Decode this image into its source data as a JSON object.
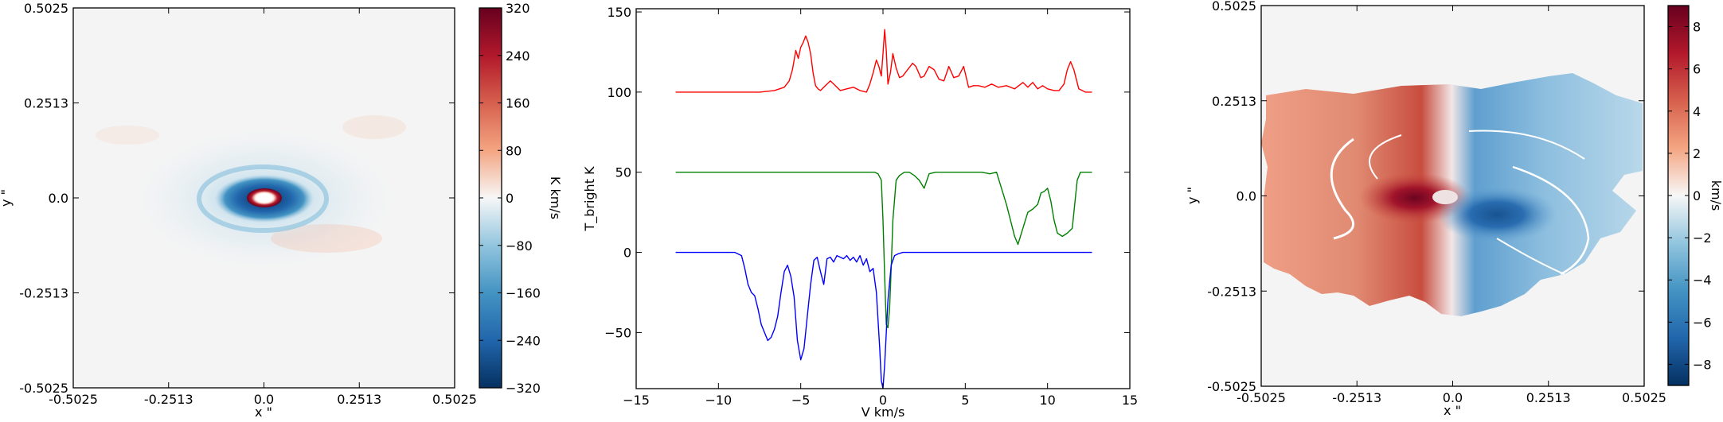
{
  "chart_data": [
    {
      "type": "heatmap",
      "panel": "moment0",
      "xlabel": "x \"",
      "ylabel": "y \"",
      "xlim": [
        -0.5025,
        0.5025
      ],
      "ylim": [
        -0.5025,
        0.5025
      ],
      "x_ticks": [
        "-0.5025",
        "-0.2513",
        "0.0",
        "0.2513",
        "0.5025"
      ],
      "y_ticks": [
        "-0.5025",
        "-0.2513",
        "0.0",
        "0.2513",
        "0.5025"
      ],
      "colorbar": {
        "label": "K km/s",
        "range": [
          -320,
          320
        ],
        "ticks": [
          "320",
          "240",
          "160",
          "80",
          "0",
          "−80",
          "−160",
          "−240",
          "−320"
        ],
        "colormap": "RdBu_r"
      }
    },
    {
      "type": "line",
      "panel": "spectra",
      "xlabel": "V km/s",
      "ylabel": "T_bright K",
      "xlim": [
        -15,
        15
      ],
      "ylim": [
        -85,
        152
      ],
      "x_ticks": [
        "−15",
        "−10",
        "−5",
        "0",
        "5",
        "10",
        "15"
      ],
      "y_ticks": [
        "150",
        "100",
        "50",
        "0",
        "−50"
      ],
      "series": [
        {
          "color": "#ff0000",
          "x": [
            -12.6,
            -7.5,
            -6.6,
            -6.0,
            -5.7,
            -5.5,
            -5.3,
            -5.15,
            -5.0,
            -4.85,
            -4.7,
            -4.55,
            -4.4,
            -4.25,
            -4.1,
            -3.95,
            -3.8,
            -3.5,
            -3.2,
            -2.9,
            -2.6,
            -2.2,
            -1.8,
            -1.4,
            -1.0,
            -0.8,
            -0.6,
            -0.4,
            -0.25,
            -0.1,
            0.0,
            0.1,
            0.2,
            0.3,
            0.45,
            0.6,
            0.8,
            1.0,
            1.2,
            1.5,
            1.8,
            2.0,
            2.3,
            2.5,
            2.8,
            3.1,
            3.4,
            3.7,
            4.0,
            4.3,
            4.6,
            4.9,
            5.2,
            5.5,
            5.8,
            6.2,
            6.6,
            7.0,
            7.5,
            8.0,
            8.5,
            8.8,
            9.1,
            9.4,
            9.7,
            10.0,
            10.4,
            10.7,
            11.0,
            11.2,
            11.4,
            11.6,
            11.9,
            12.3,
            12.7
          ],
          "y": [
            100,
            100,
            101,
            103,
            107,
            114,
            126,
            121,
            128,
            131,
            135,
            131,
            124,
            112,
            104,
            102,
            101,
            104,
            107,
            104,
            101,
            102,
            103,
            101,
            100,
            105,
            112,
            120,
            116,
            110,
            124,
            139,
            126,
            105,
            112,
            124,
            115,
            109,
            110,
            114,
            118,
            116,
            109,
            110,
            116,
            114,
            108,
            107,
            116,
            109,
            110,
            116,
            103,
            104,
            104,
            103,
            105,
            103,
            104,
            102,
            106,
            103,
            106,
            102,
            104,
            102,
            101,
            101,
            105,
            114,
            119,
            114,
            102,
            100,
            100
          ]
        },
        {
          "color": "#008000",
          "x": [
            -12.6,
            -1.0,
            -0.5,
            -0.3,
            -0.1,
            0.0,
            0.1,
            0.2,
            0.3,
            0.4,
            0.5,
            0.6,
            0.8,
            1.0,
            1.3,
            1.6,
            1.9,
            2.2,
            2.5,
            2.8,
            3.2,
            4.0,
            5.0,
            6.0,
            6.5,
            6.9,
            7.2,
            7.5,
            7.8,
            8.0,
            8.2,
            8.5,
            8.8,
            9.1,
            9.4,
            9.6,
            9.8,
            10.0,
            10.2,
            10.4,
            10.6,
            10.9,
            11.2,
            11.5,
            11.8,
            12.0,
            12.2,
            12.5,
            12.7
          ],
          "y": [
            50,
            50,
            50,
            49,
            45,
            20,
            -15,
            -45,
            -47,
            -35,
            -10,
            20,
            45,
            48,
            50,
            50,
            48,
            45,
            40,
            49,
            50,
            50,
            50,
            50,
            49,
            50,
            40,
            30,
            18,
            10,
            5,
            15,
            25,
            27,
            30,
            37,
            38,
            40,
            32,
            20,
            12,
            10,
            12,
            15,
            45,
            50,
            50,
            50,
            50
          ]
        },
        {
          "color": "#0000ff",
          "x": [
            -12.6,
            -9.0,
            -8.6,
            -8.4,
            -8.2,
            -8.0,
            -7.8,
            -7.6,
            -7.4,
            -7.2,
            -7.0,
            -6.8,
            -6.6,
            -6.4,
            -6.2,
            -6.0,
            -5.8,
            -5.6,
            -5.4,
            -5.2,
            -5.0,
            -4.8,
            -4.6,
            -4.4,
            -4.2,
            -4.0,
            -3.8,
            -3.6,
            -3.4,
            -3.2,
            -3.0,
            -2.8,
            -2.6,
            -2.4,
            -2.2,
            -2.0,
            -1.8,
            -1.6,
            -1.4,
            -1.2,
            -1.0,
            -0.8,
            -0.6,
            -0.4,
            -0.2,
            -0.1,
            0.0,
            0.1,
            0.3,
            0.5,
            0.7,
            0.9,
            1.2,
            2.0,
            5.0,
            12.7
          ],
          "y": [
            0,
            0,
            -2,
            -10,
            -20,
            -25,
            -27,
            -35,
            -45,
            -50,
            -55,
            -53,
            -48,
            -40,
            -25,
            -12,
            -8,
            -15,
            -28,
            -55,
            -67,
            -60,
            -40,
            -20,
            -5,
            -3,
            -12,
            -20,
            -4,
            -3,
            -6,
            -2,
            -3,
            -4,
            -2,
            -5,
            -3,
            -6,
            -2,
            -8,
            -4,
            -12,
            -10,
            -25,
            -60,
            -80,
            -85,
            -70,
            -30,
            -8,
            -2,
            -1,
            0,
            0,
            0,
            0
          ]
        }
      ]
    },
    {
      "type": "heatmap",
      "panel": "moment1",
      "xlabel": "x \"",
      "ylabel": "y \"",
      "xlim": [
        -0.5025,
        0.5025
      ],
      "ylim": [
        -0.5025,
        0.5025
      ],
      "x_ticks": [
        "-0.5025",
        "-0.2513",
        "0.0",
        "0.2513",
        "0.5025"
      ],
      "y_ticks": [
        "-0.5025",
        "-0.2513",
        "0.0",
        "0.2513",
        "0.5025"
      ],
      "colorbar": {
        "label": "km/s",
        "range": [
          -9,
          9
        ],
        "ticks": [
          "8",
          "6",
          "4",
          "2",
          "0",
          "−2",
          "−4",
          "−6",
          "−8"
        ],
        "colormap": "RdBu_r"
      }
    }
  ]
}
